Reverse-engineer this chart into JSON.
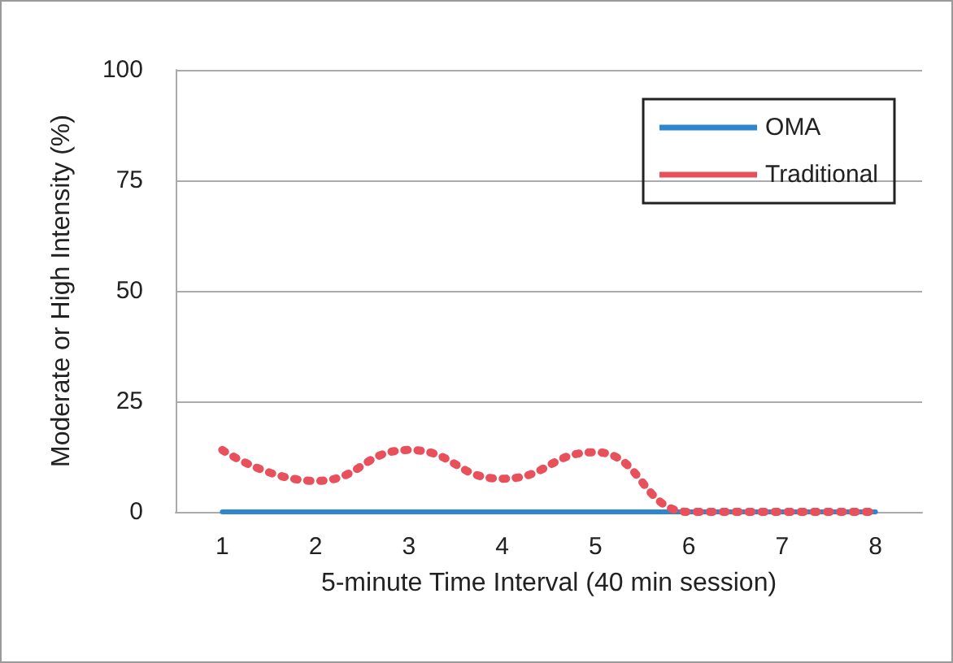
{
  "chart_data": {
    "type": "line",
    "xlabel": "5-minute Time Interval (40 min session)",
    "ylabel": "Moderate or High Intensity (%)",
    "categories": [
      "1",
      "2",
      "3",
      "4",
      "5",
      "6",
      "7",
      "8"
    ],
    "series": [
      {
        "name": "OMA",
        "color": "#2e86d0",
        "values": [
          0,
          0,
          0,
          0,
          0,
          0,
          0,
          0
        ],
        "line_style": "solid"
      },
      {
        "name": "Traditional",
        "color": "#e8505b",
        "values": [
          14,
          7,
          14,
          7.5,
          13.5,
          0,
          0,
          0
        ],
        "line_style": "dotted"
      }
    ],
    "ylim": [
      0,
      100
    ],
    "yticks": [
      0,
      25,
      50,
      75,
      100
    ],
    "grid": "y",
    "legend": "top right",
    "marker": "none"
  }
}
